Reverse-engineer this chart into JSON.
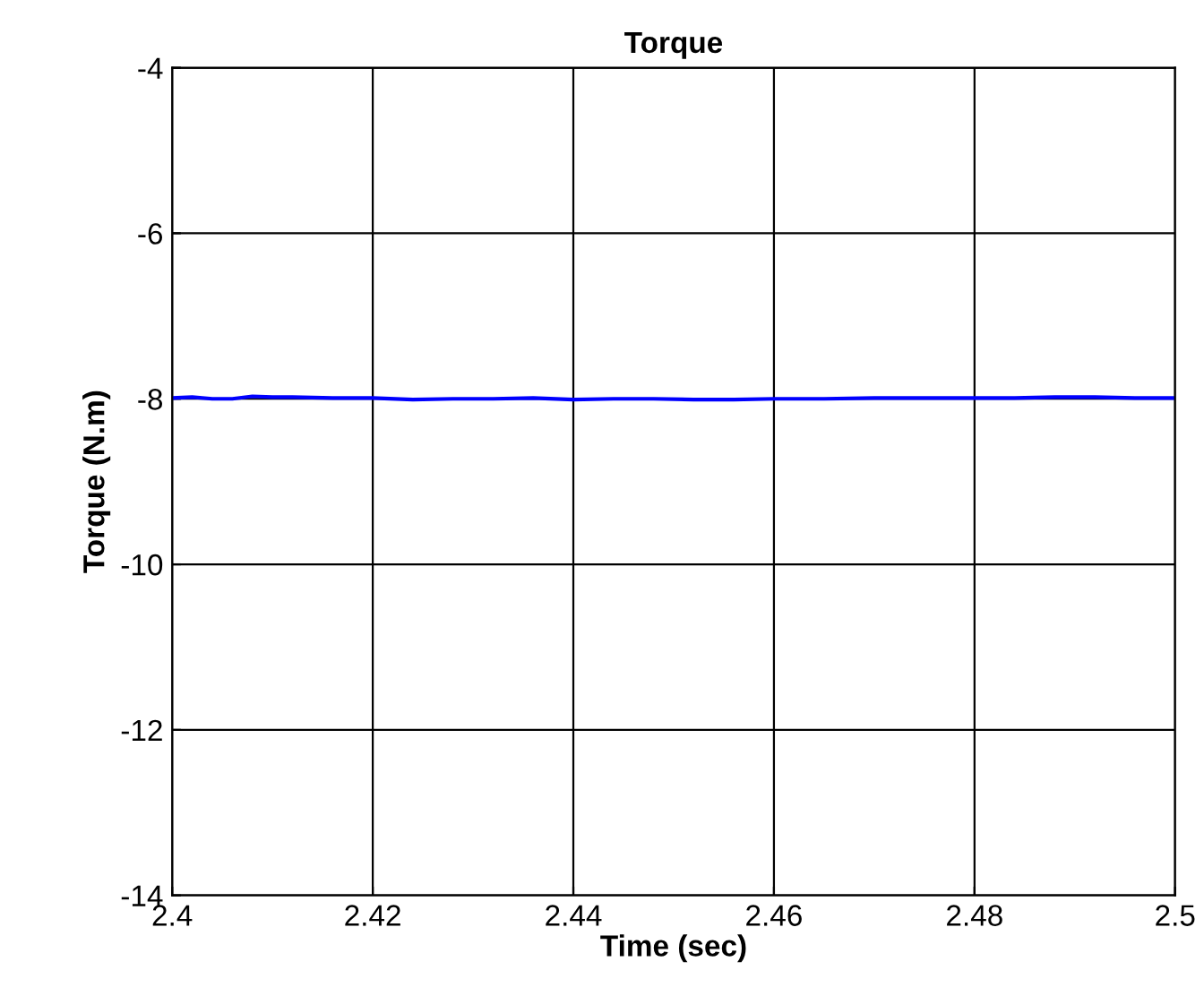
{
  "chart_data": {
    "type": "line",
    "title": "Torque",
    "xlabel": "Time (sec)",
    "ylabel": "Torque (N.m)",
    "x": [
      2.4,
      2.402,
      2.404,
      2.406,
      2.408,
      2.41,
      2.412,
      2.416,
      2.42,
      2.424,
      2.428,
      2.432,
      2.436,
      2.44,
      2.444,
      2.448,
      2.452,
      2.456,
      2.46,
      2.465,
      2.47,
      2.475,
      2.48,
      2.484,
      2.488,
      2.492,
      2.496,
      2.5
    ],
    "series": [
      {
        "color": "#0000ff",
        "values": [
          -7.99,
          -7.98,
          -8.0,
          -8.0,
          -7.97,
          -7.98,
          -7.98,
          -7.99,
          -7.99,
          -8.01,
          -8.0,
          -8.0,
          -7.99,
          -8.01,
          -8.0,
          -8.0,
          -8.01,
          -8.01,
          -8.0,
          -8.0,
          -7.99,
          -7.99,
          -7.99,
          -7.99,
          -7.98,
          -7.98,
          -7.99,
          -7.99
        ]
      }
    ],
    "xlim": [
      2.4,
      2.5
    ],
    "xticks": [
      2.4,
      2.42,
      2.44,
      2.46,
      2.48,
      2.5
    ],
    "ylim": [
      -14,
      -4
    ],
    "yticks": [
      -14,
      -12,
      -10,
      -8,
      -6,
      -4
    ],
    "grid": true,
    "line_style": "solid"
  }
}
